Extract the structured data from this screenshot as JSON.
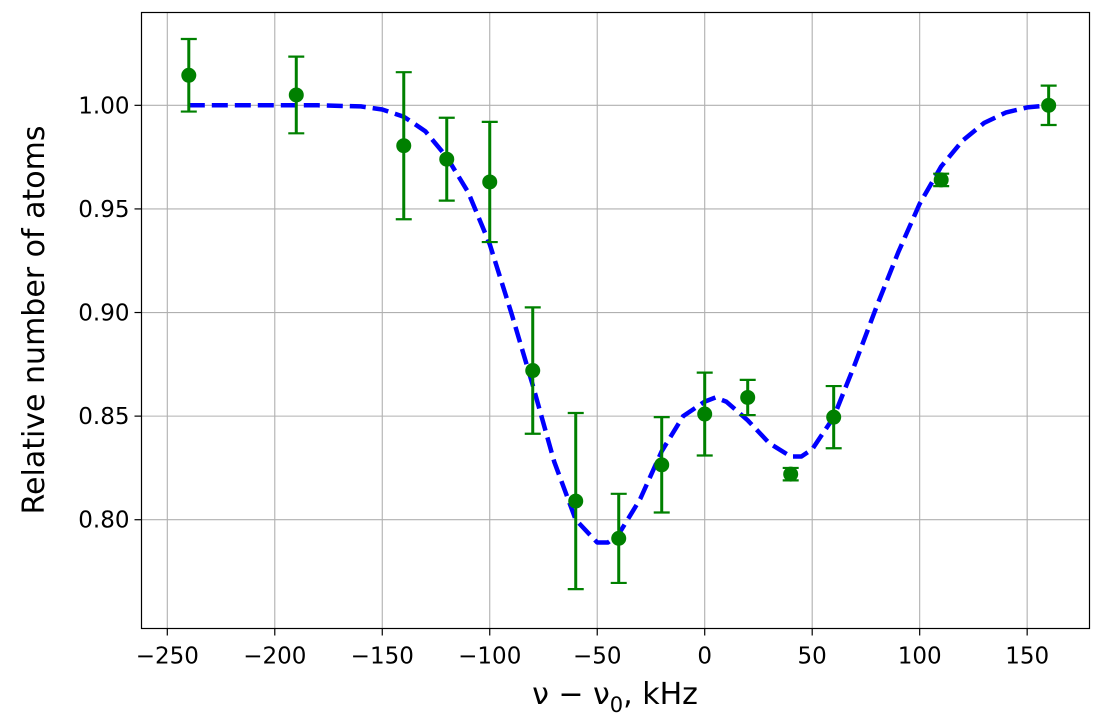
{
  "chart_data": {
    "type": "scatter",
    "xlabel": "ν − ν0, kHz",
    "xlabel_parts": {
      "main": "ν − ν",
      "subscript": "0",
      "suffix": ", kHz"
    },
    "ylabel": "Relative number of atoms",
    "xlim": [
      -262,
      179
    ],
    "ylim": [
      0.7475,
      1.0448
    ],
    "x_ticks": [
      -250,
      -200,
      -150,
      -100,
      -50,
      0,
      50,
      100,
      150
    ],
    "x_tick_labels": [
      "−250",
      "−200",
      "−150",
      "−100",
      "−50",
      "0",
      "50",
      "100",
      "150"
    ],
    "y_ticks": [
      0.8,
      0.85,
      0.9,
      0.95,
      1.0
    ],
    "y_tick_labels": [
      "0.80",
      "0.85",
      "0.90",
      "0.95",
      "1.00"
    ],
    "grid": true,
    "series": [
      {
        "kind": "points-with-error-bars",
        "color": "#008000",
        "x": [
          -240,
          -190,
          -140,
          -120,
          -100,
          -80,
          -60,
          -40,
          -20,
          0,
          20,
          40,
          60,
          110,
          160
        ],
        "y": [
          1.0145,
          1.005,
          0.9805,
          0.974,
          0.963,
          0.872,
          0.809,
          0.791,
          0.8265,
          0.851,
          0.859,
          0.822,
          0.8495,
          0.964,
          1.0
        ],
        "err": [
          0.0175,
          0.0185,
          0.0355,
          0.02,
          0.029,
          0.0305,
          0.0425,
          0.0215,
          0.023,
          0.02,
          0.0085,
          0.003,
          0.015,
          0.003,
          0.0095
        ]
      },
      {
        "kind": "fit-curve",
        "color": "#0000ff",
        "line_style": "dashed",
        "x": [
          -240,
          -220,
          -200,
          -180,
          -160,
          -150,
          -140,
          -130,
          -120,
          -110,
          -100,
          -90,
          -80,
          -70,
          -60,
          -50,
          -45,
          -40,
          -30,
          -20,
          -10,
          0,
          5,
          10,
          20,
          30,
          40,
          45,
          50,
          60,
          70,
          80,
          90,
          100,
          110,
          120,
          130,
          140,
          150,
          160
        ],
        "y": [
          1.0,
          1.0,
          1.0,
          1.0,
          0.9995,
          0.998,
          0.9945,
          0.9875,
          0.975,
          0.958,
          0.933,
          0.9,
          0.865,
          0.828,
          0.8,
          0.789,
          0.789,
          0.793,
          0.81,
          0.833,
          0.85,
          0.857,
          0.859,
          0.857,
          0.848,
          0.837,
          0.8305,
          0.8305,
          0.834,
          0.8495,
          0.8755,
          0.903,
          0.929,
          0.9525,
          0.9705,
          0.983,
          0.9915,
          0.9965,
          0.999,
          1.0
        ]
      }
    ]
  }
}
